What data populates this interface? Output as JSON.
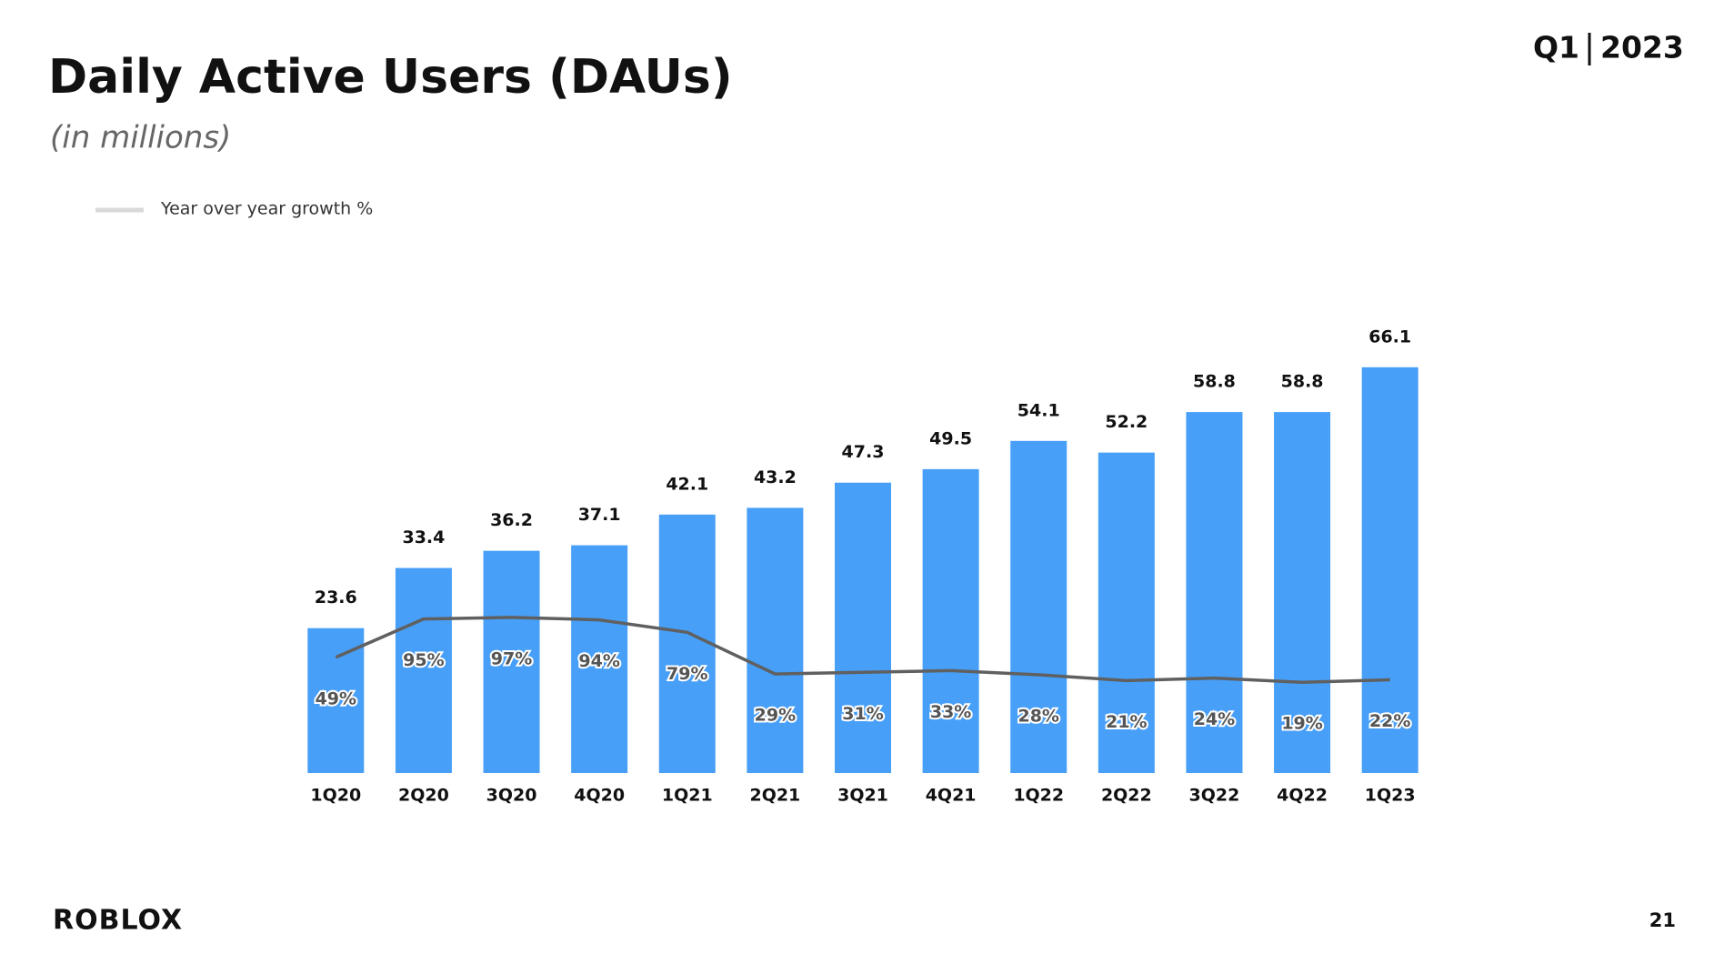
{
  "header": {
    "period": "Q1",
    "year": "2023",
    "logo": "ROBLOX",
    "page_number": "21"
  },
  "chart_data": {
    "type": "bar",
    "title": "Daily Active Users (DAUs)",
    "subtitle": "(in millions)",
    "categories": [
      "1Q20",
      "2Q20",
      "3Q20",
      "4Q20",
      "1Q21",
      "2Q21",
      "3Q21",
      "4Q21",
      "1Q22",
      "2Q22",
      "3Q22",
      "4Q22",
      "1Q23"
    ],
    "series": [
      {
        "color": "#479ff8",
        "values": [
          23.6,
          33.4,
          36.2,
          37.1,
          42.1,
          43.2,
          47.3,
          49.5,
          54.1,
          52.2,
          58.8,
          58.8,
          66.1
        ]
      },
      {
        "name": "Year over year growth %",
        "type": "line",
        "axis": "y2",
        "color": "#606060",
        "values": [
          49,
          95,
          97,
          94,
          79,
          29,
          31,
          33,
          28,
          21,
          24,
          19,
          22
        ],
        "value_labels": [
          "49%",
          "95%",
          "97%",
          "94%",
          "79%",
          "29%",
          "31%",
          "33%",
          "28%",
          "21%",
          "24%",
          "19%",
          "22%"
        ]
      }
    ],
    "ylim": [
      0,
      80
    ],
    "y2lim": [
      -90,
      500
    ]
  }
}
